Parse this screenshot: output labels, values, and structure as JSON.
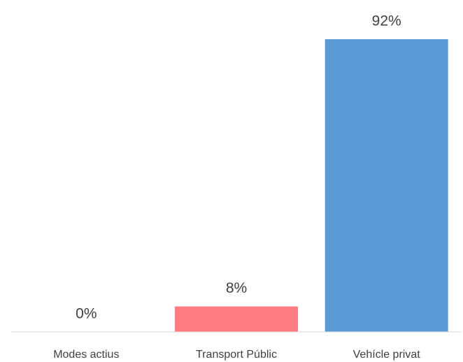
{
  "chart_data": {
    "type": "bar",
    "categories": [
      "Modes actius",
      "Transport Públic",
      "Vehícle privat"
    ],
    "values": [
      0,
      8,
      92
    ],
    "value_labels": [
      "0%",
      "8%",
      "92%"
    ],
    "colors": [
      "#a9d18e",
      "#ff7c80",
      "#5b9bd5"
    ]
  }
}
